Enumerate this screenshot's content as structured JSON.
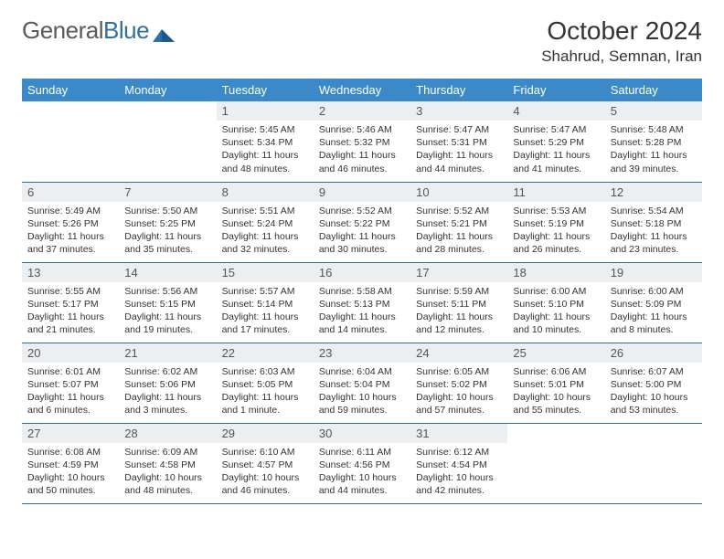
{
  "brand": {
    "part1": "General",
    "part2": "Blue"
  },
  "header": {
    "title": "October 2024",
    "location": "Shahrud, Semnan, Iran"
  },
  "colors": {
    "header_bg": "#3b89c9",
    "header_text": "#ffffff",
    "daynum_bg": "#eceff1",
    "border": "#2f6fa8",
    "brand_gray": "#5a5a5a",
    "brand_blue": "#2f6fa8"
  },
  "weekdays": [
    "Sunday",
    "Monday",
    "Tuesday",
    "Wednesday",
    "Thursday",
    "Friday",
    "Saturday"
  ],
  "weeks": [
    [
      {
        "empty": true
      },
      {
        "empty": true
      },
      {
        "num": "1",
        "sunrise": "Sunrise: 5:45 AM",
        "sunset": "Sunset: 5:34 PM",
        "daylight": "Daylight: 11 hours and 48 minutes."
      },
      {
        "num": "2",
        "sunrise": "Sunrise: 5:46 AM",
        "sunset": "Sunset: 5:32 PM",
        "daylight": "Daylight: 11 hours and 46 minutes."
      },
      {
        "num": "3",
        "sunrise": "Sunrise: 5:47 AM",
        "sunset": "Sunset: 5:31 PM",
        "daylight": "Daylight: 11 hours and 44 minutes."
      },
      {
        "num": "4",
        "sunrise": "Sunrise: 5:47 AM",
        "sunset": "Sunset: 5:29 PM",
        "daylight": "Daylight: 11 hours and 41 minutes."
      },
      {
        "num": "5",
        "sunrise": "Sunrise: 5:48 AM",
        "sunset": "Sunset: 5:28 PM",
        "daylight": "Daylight: 11 hours and 39 minutes."
      }
    ],
    [
      {
        "num": "6",
        "sunrise": "Sunrise: 5:49 AM",
        "sunset": "Sunset: 5:26 PM",
        "daylight": "Daylight: 11 hours and 37 minutes."
      },
      {
        "num": "7",
        "sunrise": "Sunrise: 5:50 AM",
        "sunset": "Sunset: 5:25 PM",
        "daylight": "Daylight: 11 hours and 35 minutes."
      },
      {
        "num": "8",
        "sunrise": "Sunrise: 5:51 AM",
        "sunset": "Sunset: 5:24 PM",
        "daylight": "Daylight: 11 hours and 32 minutes."
      },
      {
        "num": "9",
        "sunrise": "Sunrise: 5:52 AM",
        "sunset": "Sunset: 5:22 PM",
        "daylight": "Daylight: 11 hours and 30 minutes."
      },
      {
        "num": "10",
        "sunrise": "Sunrise: 5:52 AM",
        "sunset": "Sunset: 5:21 PM",
        "daylight": "Daylight: 11 hours and 28 minutes."
      },
      {
        "num": "11",
        "sunrise": "Sunrise: 5:53 AM",
        "sunset": "Sunset: 5:19 PM",
        "daylight": "Daylight: 11 hours and 26 minutes."
      },
      {
        "num": "12",
        "sunrise": "Sunrise: 5:54 AM",
        "sunset": "Sunset: 5:18 PM",
        "daylight": "Daylight: 11 hours and 23 minutes."
      }
    ],
    [
      {
        "num": "13",
        "sunrise": "Sunrise: 5:55 AM",
        "sunset": "Sunset: 5:17 PM",
        "daylight": "Daylight: 11 hours and 21 minutes."
      },
      {
        "num": "14",
        "sunrise": "Sunrise: 5:56 AM",
        "sunset": "Sunset: 5:15 PM",
        "daylight": "Daylight: 11 hours and 19 minutes."
      },
      {
        "num": "15",
        "sunrise": "Sunrise: 5:57 AM",
        "sunset": "Sunset: 5:14 PM",
        "daylight": "Daylight: 11 hours and 17 minutes."
      },
      {
        "num": "16",
        "sunrise": "Sunrise: 5:58 AM",
        "sunset": "Sunset: 5:13 PM",
        "daylight": "Daylight: 11 hours and 14 minutes."
      },
      {
        "num": "17",
        "sunrise": "Sunrise: 5:59 AM",
        "sunset": "Sunset: 5:11 PM",
        "daylight": "Daylight: 11 hours and 12 minutes."
      },
      {
        "num": "18",
        "sunrise": "Sunrise: 6:00 AM",
        "sunset": "Sunset: 5:10 PM",
        "daylight": "Daylight: 11 hours and 10 minutes."
      },
      {
        "num": "19",
        "sunrise": "Sunrise: 6:00 AM",
        "sunset": "Sunset: 5:09 PM",
        "daylight": "Daylight: 11 hours and 8 minutes."
      }
    ],
    [
      {
        "num": "20",
        "sunrise": "Sunrise: 6:01 AM",
        "sunset": "Sunset: 5:07 PM",
        "daylight": "Daylight: 11 hours and 6 minutes."
      },
      {
        "num": "21",
        "sunrise": "Sunrise: 6:02 AM",
        "sunset": "Sunset: 5:06 PM",
        "daylight": "Daylight: 11 hours and 3 minutes."
      },
      {
        "num": "22",
        "sunrise": "Sunrise: 6:03 AM",
        "sunset": "Sunset: 5:05 PM",
        "daylight": "Daylight: 11 hours and 1 minute."
      },
      {
        "num": "23",
        "sunrise": "Sunrise: 6:04 AM",
        "sunset": "Sunset: 5:04 PM",
        "daylight": "Daylight: 10 hours and 59 minutes."
      },
      {
        "num": "24",
        "sunrise": "Sunrise: 6:05 AM",
        "sunset": "Sunset: 5:02 PM",
        "daylight": "Daylight: 10 hours and 57 minutes."
      },
      {
        "num": "25",
        "sunrise": "Sunrise: 6:06 AM",
        "sunset": "Sunset: 5:01 PM",
        "daylight": "Daylight: 10 hours and 55 minutes."
      },
      {
        "num": "26",
        "sunrise": "Sunrise: 6:07 AM",
        "sunset": "Sunset: 5:00 PM",
        "daylight": "Daylight: 10 hours and 53 minutes."
      }
    ],
    [
      {
        "num": "27",
        "sunrise": "Sunrise: 6:08 AM",
        "sunset": "Sunset: 4:59 PM",
        "daylight": "Daylight: 10 hours and 50 minutes."
      },
      {
        "num": "28",
        "sunrise": "Sunrise: 6:09 AM",
        "sunset": "Sunset: 4:58 PM",
        "daylight": "Daylight: 10 hours and 48 minutes."
      },
      {
        "num": "29",
        "sunrise": "Sunrise: 6:10 AM",
        "sunset": "Sunset: 4:57 PM",
        "daylight": "Daylight: 10 hours and 46 minutes."
      },
      {
        "num": "30",
        "sunrise": "Sunrise: 6:11 AM",
        "sunset": "Sunset: 4:56 PM",
        "daylight": "Daylight: 10 hours and 44 minutes."
      },
      {
        "num": "31",
        "sunrise": "Sunrise: 6:12 AM",
        "sunset": "Sunset: 4:54 PM",
        "daylight": "Daylight: 10 hours and 42 minutes."
      },
      {
        "empty": true
      },
      {
        "empty": true
      }
    ]
  ]
}
